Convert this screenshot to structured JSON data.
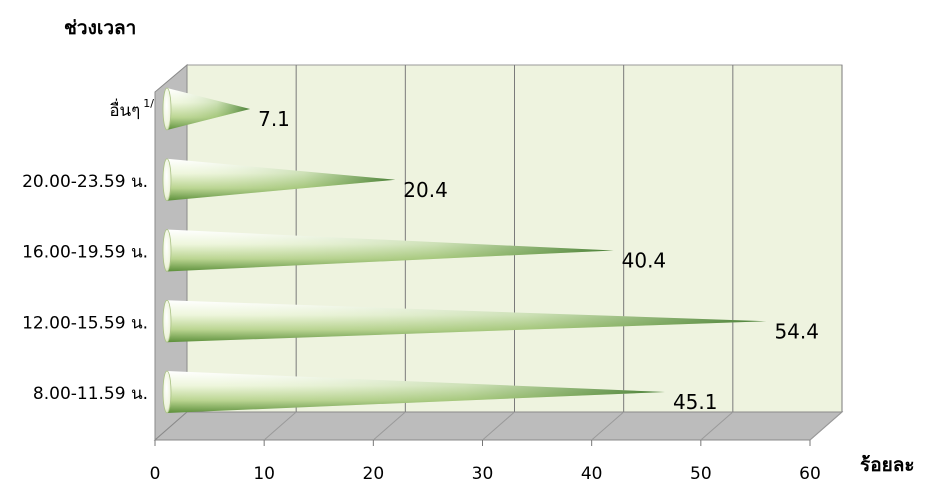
{
  "chart_data": {
    "type": "bar",
    "orientation": "horizontal",
    "style": "3d-cone",
    "ylabel": "ช่วงเวลา",
    "xlabel": "ร้อยละ",
    "xlim": [
      0,
      60
    ],
    "xticks": [
      "0",
      "10",
      "20",
      "30",
      "40",
      "50",
      "60"
    ],
    "categories": [
      "อื่นๆ",
      "20.00-23.59 น.",
      "16.00-19.59 น.",
      "12.00-15.59 น.",
      "8.00-11.59 น."
    ],
    "category_footnote": "1/",
    "values": [
      7.1,
      20.4,
      40.4,
      54.4,
      45.1
    ],
    "value_labels": [
      "7.1",
      "20.4",
      "40.4",
      "54.4",
      "45.1"
    ],
    "grid": true,
    "colors": {
      "wall": "#eef3df",
      "floor": "#bcbcbc",
      "side_wall": "#bdbdbd",
      "grid": "#7a7a7a",
      "cone_light": "#ffffff",
      "cone_mid": "#c7dda0",
      "cone_dark": "#3f7f2a"
    }
  }
}
